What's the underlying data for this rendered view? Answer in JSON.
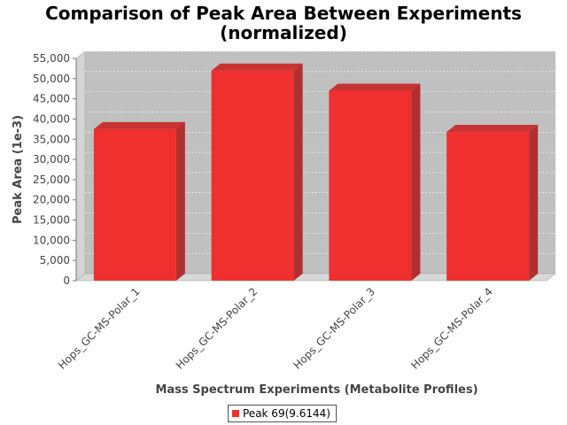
{
  "chart_data": {
    "type": "bar",
    "title_line1": "Comparison of Peak Area Between Experiments",
    "title_line2": "(normalized)",
    "xlabel": "Mass Spectrum Experiments (Metabolite Profiles)",
    "ylabel": "Peak Area (1e-3)",
    "categories": [
      "Hops_GC-MS-Polar_1",
      "Hops_GC-MS-Polar_2",
      "Hops_GC-MS-Polar_3",
      "Hops_GC-MS-Polar_4"
    ],
    "series": [
      {
        "name": "Peak 69(9.6144)",
        "values": [
          37500,
          52000,
          47000,
          36800
        ],
        "color": "#f02f2f"
      }
    ],
    "ylim": [
      0,
      55000
    ],
    "yticks": [
      "0",
      "5,000",
      "10,000",
      "15,000",
      "20,000",
      "25,000",
      "30,000",
      "35,000",
      "40,000",
      "45,000",
      "50,000",
      "55,000"
    ],
    "ytick_values": [
      0,
      5000,
      10000,
      15000,
      20000,
      25000,
      30000,
      35000,
      40000,
      45000,
      50000,
      55000
    ],
    "grid": true,
    "legend_position": "bottom",
    "plot_background": "#c0c0c0"
  }
}
